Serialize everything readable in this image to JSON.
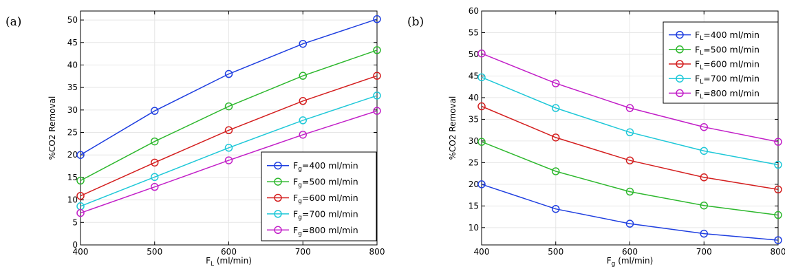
{
  "chart_data": [
    {
      "type": "line",
      "panel_label": "(a)",
      "xlabel": "F_L (ml/min)",
      "xlabel_main": "F",
      "xlabel_sub": "L",
      "xlabel_rest": " (ml/min)",
      "ylabel": "%CO2 Removal",
      "x": [
        400,
        500,
        600,
        700,
        800
      ],
      "xlim": [
        400,
        800
      ],
      "ylim": [
        0,
        52
      ],
      "xticks": [
        400,
        500,
        600,
        700,
        800
      ],
      "yticks": [
        0,
        5,
        10,
        15,
        20,
        25,
        30,
        35,
        40,
        45,
        50
      ],
      "grid": true,
      "legend_position": "bottom-right",
      "series": [
        {
          "name": "F_g=400 ml/min",
          "prefix": "F",
          "sub": "g",
          "suffix": "=400 ml/min",
          "color": "#1f3fe0",
          "values": [
            20.0,
            29.8,
            38.0,
            44.7,
            50.2
          ]
        },
        {
          "name": "F_g=500 ml/min",
          "prefix": "F",
          "sub": "g",
          "suffix": "=500 ml/min",
          "color": "#2eb82e",
          "values": [
            14.3,
            23.0,
            30.8,
            37.6,
            43.3
          ]
        },
        {
          "name": "F_g=600 ml/min",
          "prefix": "F",
          "sub": "g",
          "suffix": "=600 ml/min",
          "color": "#d41f1f",
          "values": [
            10.9,
            18.3,
            25.5,
            32.0,
            37.6
          ]
        },
        {
          "name": "F_g=700 ml/min",
          "prefix": "F",
          "sub": "g",
          "suffix": "=700 ml/min",
          "color": "#1fc8d8",
          "values": [
            8.6,
            15.1,
            21.6,
            27.7,
            33.2
          ]
        },
        {
          "name": "F_g=800 ml/min",
          "prefix": "F",
          "sub": "g",
          "suffix": "=800 ml/min",
          "color": "#c21fc8",
          "values": [
            7.1,
            12.9,
            18.8,
            24.5,
            29.8
          ]
        }
      ]
    },
    {
      "type": "line",
      "panel_label": "(b)",
      "xlabel": "F_g (ml/min)",
      "xlabel_main": "F",
      "xlabel_sub": "g",
      "xlabel_rest": " (ml/min)",
      "ylabel": "%CO2 Removal",
      "x": [
        400,
        500,
        600,
        700,
        800
      ],
      "xlim": [
        400,
        800
      ],
      "ylim": [
        6,
        60
      ],
      "xticks": [
        400,
        500,
        600,
        700,
        800
      ],
      "yticks": [
        10,
        15,
        20,
        25,
        30,
        35,
        40,
        45,
        50,
        55,
        60
      ],
      "grid": true,
      "legend_position": "top-right",
      "series": [
        {
          "name": "F_L=400 ml/min",
          "prefix": "F",
          "sub": "L",
          "suffix": "=400 ml/min",
          "color": "#1f3fe0",
          "values": [
            20.0,
            14.3,
            10.9,
            8.6,
            7.1
          ]
        },
        {
          "name": "F_L=500 ml/min",
          "prefix": "F",
          "sub": "L",
          "suffix": "=500 ml/min",
          "color": "#2eb82e",
          "values": [
            29.8,
            23.0,
            18.3,
            15.1,
            12.9
          ]
        },
        {
          "name": "F_L=600 ml/min",
          "prefix": "F",
          "sub": "L",
          "suffix": "=600 ml/min",
          "color": "#d41f1f",
          "values": [
            38.0,
            30.8,
            25.5,
            21.6,
            18.8
          ]
        },
        {
          "name": "F_L=700 ml/min",
          "prefix": "F",
          "sub": "L",
          "suffix": "=700 ml/min",
          "color": "#1fc8d8",
          "values": [
            44.7,
            37.6,
            32.0,
            27.7,
            24.5
          ]
        },
        {
          "name": "F_L=800 ml/min",
          "prefix": "F",
          "sub": "L",
          "suffix": "=800 ml/min",
          "color": "#c21fc8",
          "values": [
            50.2,
            43.3,
            37.6,
            33.2,
            29.8
          ]
        }
      ]
    }
  ]
}
